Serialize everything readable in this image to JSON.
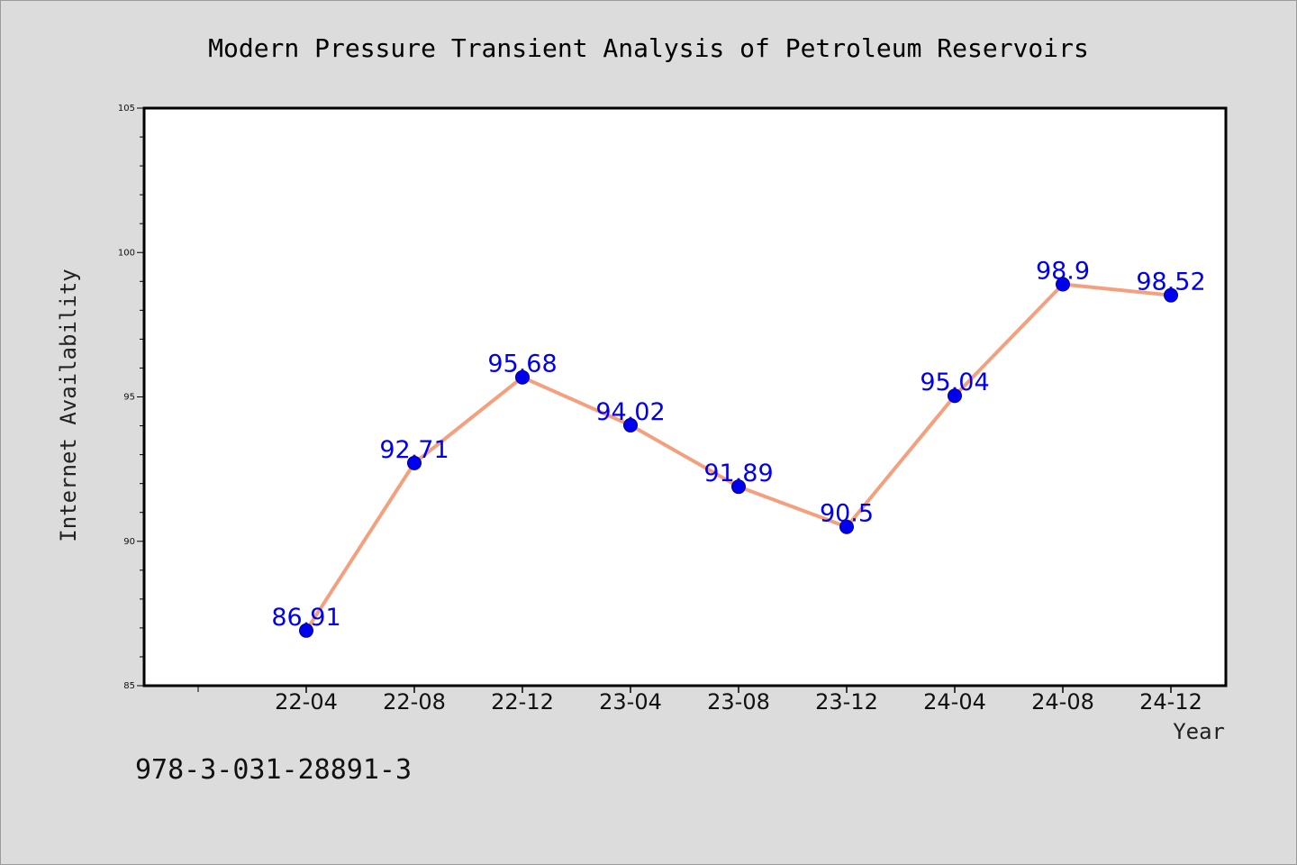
{
  "chart_data": {
    "type": "line",
    "title": "Modern Pressure Transient Analysis of Petroleum Reservoirs",
    "xlabel": "Year",
    "ylabel": "Internet Availability",
    "categories": [
      "22-04",
      "22-08",
      "22-12",
      "23-04",
      "23-08",
      "23-12",
      "24-04",
      "24-08",
      "24-12"
    ],
    "series": [
      {
        "values": [
          86.91,
          92.71,
          95.68,
          94.02,
          91.89,
          90.5,
          95.04,
          98.9,
          98.52
        ]
      }
    ],
    "data_labels": [
      "86.91",
      "92.71",
      "95.68",
      "94.02",
      "91.89",
      "90.5",
      "95.04",
      "98.9",
      "98.52"
    ],
    "ylim": [
      85,
      105
    ],
    "yticks": [
      85,
      90,
      95,
      100,
      105
    ],
    "grid": false,
    "legend": "none",
    "colors": {
      "line": "#f4a07f",
      "marker": "#0000ee",
      "label": "#0000ee"
    }
  },
  "footer": {
    "isbn": "978-3-031-28891-3"
  }
}
